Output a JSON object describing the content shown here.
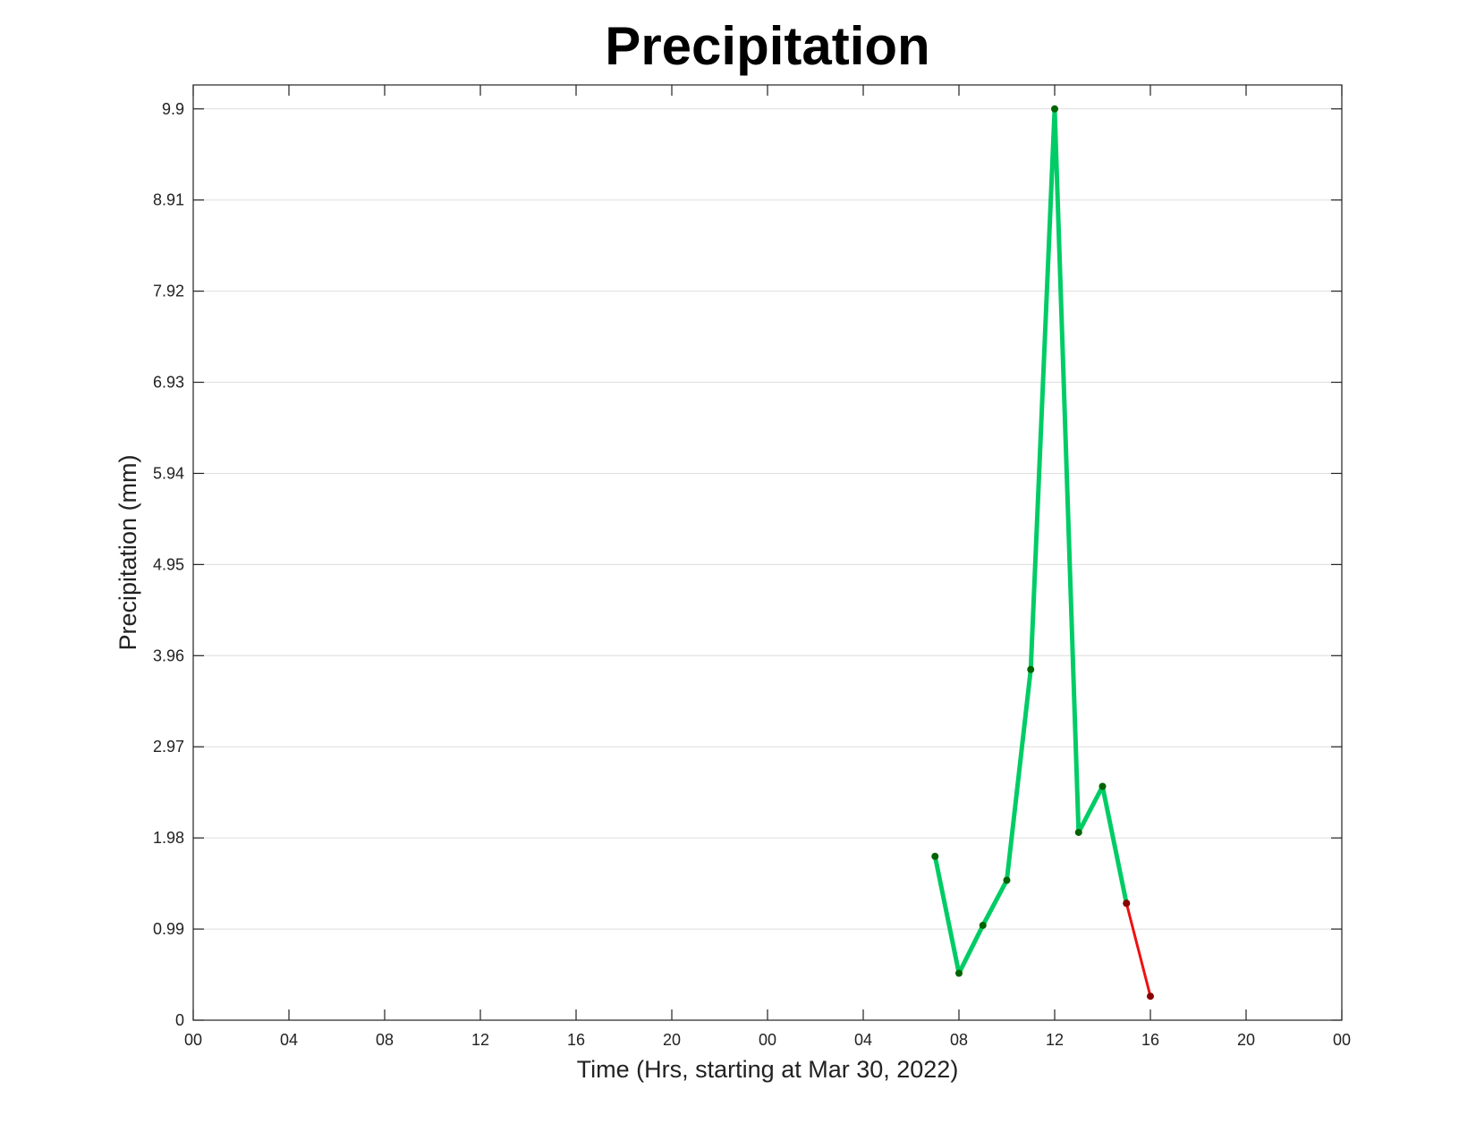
{
  "chart_data": {
    "type": "line",
    "title": "Precipitation",
    "xlabel": "Time (Hrs, starting at Mar 30, 2022)",
    "ylabel": "Precipitation (mm)",
    "xlim": [
      0,
      48
    ],
    "ylim": [
      0,
      10.16
    ],
    "xticks": [
      {
        "value": 0,
        "label": "00"
      },
      {
        "value": 4,
        "label": "04"
      },
      {
        "value": 8,
        "label": "08"
      },
      {
        "value": 12,
        "label": "12"
      },
      {
        "value": 16,
        "label": "16"
      },
      {
        "value": 20,
        "label": "20"
      },
      {
        "value": 24,
        "label": "00"
      },
      {
        "value": 28,
        "label": "04"
      },
      {
        "value": 32,
        "label": "08"
      },
      {
        "value": 36,
        "label": "12"
      },
      {
        "value": 40,
        "label": "16"
      },
      {
        "value": 44,
        "label": "20"
      },
      {
        "value": 48,
        "label": "00"
      }
    ],
    "yticks": [
      0,
      0.99,
      1.98,
      2.97,
      3.96,
      4.95,
      5.94,
      6.93,
      7.92,
      8.91,
      9.9
    ],
    "grid": "y",
    "series": [
      {
        "color": "#00cc66",
        "marker_color": "#006400",
        "x": [
          31,
          32,
          33,
          34,
          35,
          36,
          37,
          38,
          39
        ],
        "values": [
          1.78,
          0.51,
          1.03,
          1.52,
          3.81,
          9.9,
          2.04,
          2.54,
          1.27
        ]
      },
      {
        "color": "#ee1111",
        "marker_color": "#8b0000",
        "x": [
          39,
          40
        ],
        "values": [
          1.27,
          0.26
        ]
      }
    ]
  }
}
